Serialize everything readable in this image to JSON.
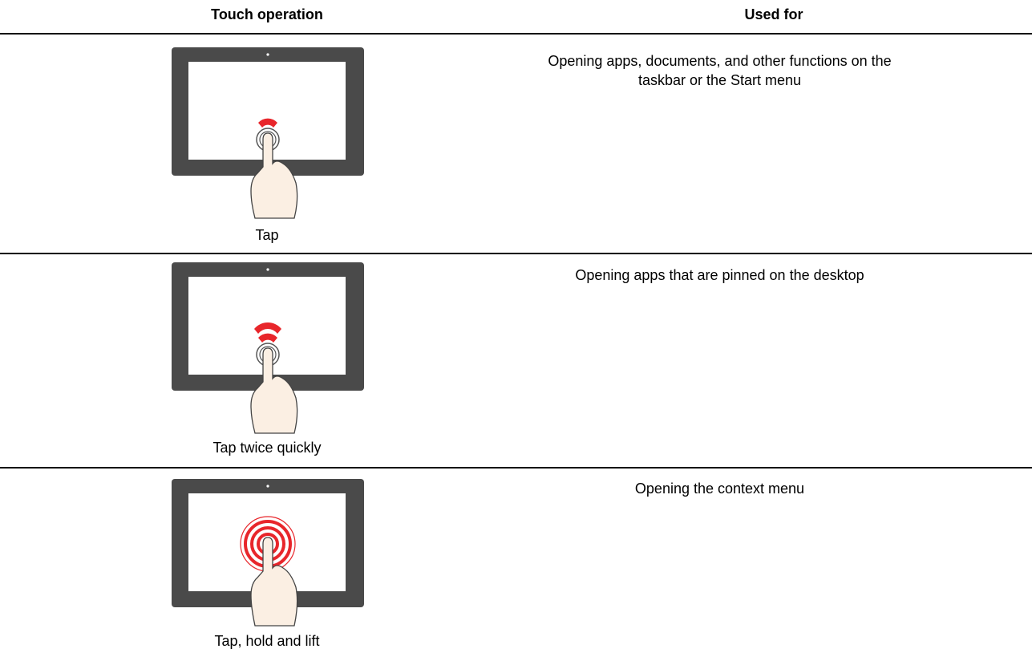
{
  "table": {
    "header": [
      "Touch operation",
      "Used for"
    ],
    "rows": [
      [
        "Tap",
        "Opening apps, documents, and other functions on the taskbar or the Start menu"
      ],
      [
        "Tap twice quickly",
        "Opening apps that are pinned on the desktop"
      ],
      [
        "Tap, hold and lift",
        "Opening the context menu"
      ]
    ]
  }
}
